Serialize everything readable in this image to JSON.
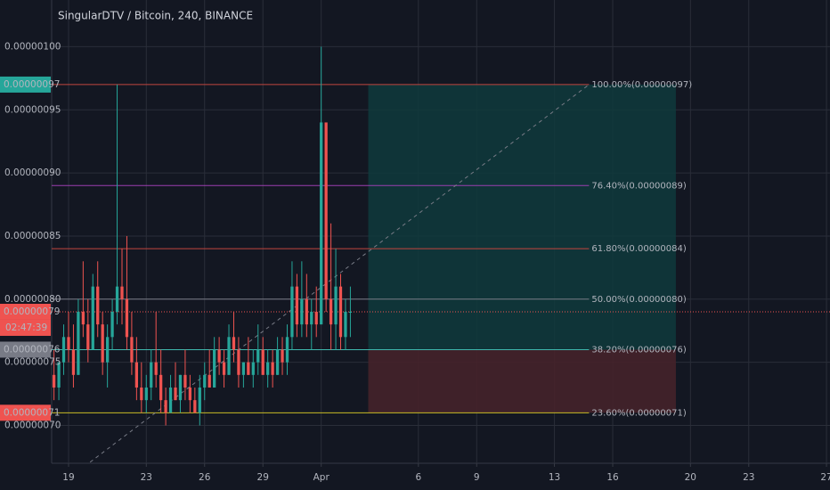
{
  "chart_data": {
    "type": "candlestick",
    "title": "SingularDTV / Bitcoin, 240, BINANCE",
    "up_color": "#26a69a",
    "down_color": "#ef5350",
    "grid": true,
    "ylim": [
      6.7e-07,
      1.037e-06
    ],
    "yticks": [
      {
        "value": 7e-07,
        "label": "0.00000070"
      },
      {
        "value": 7.5e-07,
        "label": "0.00000075"
      },
      {
        "value": 8e-07,
        "label": "0.00000080"
      },
      {
        "value": 8.5e-07,
        "label": "0.00000085"
      },
      {
        "value": 9e-07,
        "label": "0.00000090"
      },
      {
        "value": 9.5e-07,
        "label": "0.00000095"
      },
      {
        "value": 1e-06,
        "label": "0.00000100"
      }
    ],
    "xlim": [
      18.13,
      58.18
    ],
    "xticks": [
      19,
      23,
      26,
      29,
      {
        "value": 32,
        "label": "Apr"
      },
      {
        "value": 37,
        "label": "6"
      },
      {
        "value": 40,
        "label": "9"
      },
      {
        "value": 44,
        "label": "13"
      },
      {
        "value": 47,
        "label": "16"
      },
      {
        "value": 51,
        "label": "20"
      },
      {
        "value": 54,
        "label": "23"
      },
      {
        "value": 58,
        "label": "27"
      }
    ],
    "x": [
      18.25,
      18.5,
      18.75,
      19,
      19.25,
      19.5,
      19.75,
      20,
      20.25,
      20.5,
      20.75,
      21,
      21.25,
      21.5,
      21.75,
      22,
      22.25,
      22.5,
      22.75,
      23,
      23.25,
      23.5,
      23.75,
      24,
      24.25,
      24.5,
      24.75,
      25,
      25.25,
      25.5,
      25.75,
      26,
      26.25,
      26.5,
      26.75,
      27,
      27.25,
      27.5,
      27.75,
      28,
      28.25,
      28.5,
      28.75,
      29,
      29.25,
      29.5,
      29.75,
      30,
      30.25,
      30.5,
      30.75,
      31,
      31.25,
      31.5,
      31.75,
      32,
      32.25,
      32.5,
      32.75,
      33,
      33.25,
      33.5
    ],
    "open": [
      7.4e-07,
      7.3e-07,
      7.5e-07,
      7.7e-07,
      7.6e-07,
      7.4e-07,
      7.9e-07,
      7.8e-07,
      7.6e-07,
      8.1e-07,
      7.8e-07,
      7.5e-07,
      7.7e-07,
      7.9e-07,
      8.1e-07,
      8e-07,
      7.7e-07,
      7.5e-07,
      7.3e-07,
      7.2e-07,
      7.3e-07,
      7.5e-07,
      7.4e-07,
      7.2e-07,
      7.1e-07,
      7.3e-07,
      7.2e-07,
      7.4e-07,
      7.3e-07,
      7.2e-07,
      7.1e-07,
      7.3e-07,
      7.4e-07,
      7.3e-07,
      7.6e-07,
      7.5e-07,
      7.4e-07,
      7.7e-07,
      7.6e-07,
      7.4e-07,
      7.5e-07,
      7.4e-07,
      7.5e-07,
      7.6e-07,
      7.4e-07,
      7.5e-07,
      7.4e-07,
      7.6e-07,
      7.5e-07,
      7.7e-07,
      8.1e-07,
      7.8e-07,
      8e-07,
      7.8e-07,
      7.9e-07,
      7.8e-07,
      9.4e-07,
      8e-07,
      7.8e-07,
      8.1e-07,
      7.7e-07,
      7.9e-07
    ],
    "high": [
      7.6e-07,
      7.5e-07,
      7.8e-07,
      7.9e-07,
      7.8e-07,
      8e-07,
      8.3e-07,
      8e-07,
      8.2e-07,
      8.3e-07,
      7.9e-07,
      7.8e-07,
      8e-07,
      9.7e-07,
      8.4e-07,
      8.5e-07,
      7.9e-07,
      7.7e-07,
      7.5e-07,
      7.4e-07,
      7.6e-07,
      7.9e-07,
      7.6e-07,
      7.3e-07,
      7.4e-07,
      7.5e-07,
      7.4e-07,
      7.6e-07,
      7.4e-07,
      7.3e-07,
      7.4e-07,
      7.5e-07,
      7.6e-07,
      7.7e-07,
      7.7e-07,
      7.6e-07,
      7.8e-07,
      7.9e-07,
      7.7e-07,
      7.5e-07,
      7.7e-07,
      7.6e-07,
      7.8e-07,
      7.7e-07,
      7.6e-07,
      7.6e-07,
      7.7e-07,
      7.7e-07,
      7.8e-07,
      8.3e-07,
      8.2e-07,
      8.3e-07,
      8.2e-07,
      8e-07,
      8.1e-07,
      1e-06,
      9.4e-07,
      8.6e-07,
      8.4e-07,
      8.2e-07,
      8e-07,
      8.1e-07
    ],
    "low": [
      7.2e-07,
      7.2e-07,
      7.4e-07,
      7.5e-07,
      7.3e-07,
      7.4e-07,
      7.7e-07,
      7.5e-07,
      7.6e-07,
      7.7e-07,
      7.4e-07,
      7.3e-07,
      7.6e-07,
      7.8e-07,
      7.8e-07,
      7.6e-07,
      7.4e-07,
      7.2e-07,
      7.1e-07,
      7.1e-07,
      7.2e-07,
      7.3e-07,
      7.1e-07,
      7e-07,
      7.1e-07,
      7.2e-07,
      7.1e-07,
      7.2e-07,
      7.1e-07,
      7.1e-07,
      7e-07,
      7.2e-07,
      7.3e-07,
      7.3e-07,
      7.4e-07,
      7.3e-07,
      7.4e-07,
      7.5e-07,
      7.3e-07,
      7.3e-07,
      7.4e-07,
      7.3e-07,
      7.4e-07,
      7.4e-07,
      7.3e-07,
      7.3e-07,
      7.4e-07,
      7.4e-07,
      7.4e-07,
      7.6e-07,
      7.7e-07,
      7.7e-07,
      7.7e-07,
      7.6e-07,
      7.7e-07,
      7.8e-07,
      7.9e-07,
      7.6e-07,
      7.6e-07,
      7.6e-07,
      7.6e-07,
      7.7e-07
    ],
    "close": [
      7.3e-07,
      7.5e-07,
      7.7e-07,
      7.6e-07,
      7.4e-07,
      7.9e-07,
      7.8e-07,
      7.6e-07,
      8.1e-07,
      7.8e-07,
      7.5e-07,
      7.7e-07,
      7.9e-07,
      8.1e-07,
      8e-07,
      7.7e-07,
      7.5e-07,
      7.3e-07,
      7.2e-07,
      7.3e-07,
      7.5e-07,
      7.4e-07,
      7.2e-07,
      7.1e-07,
      7.3e-07,
      7.2e-07,
      7.4e-07,
      7.3e-07,
      7.2e-07,
      7.1e-07,
      7.3e-07,
      7.4e-07,
      7.3e-07,
      7.6e-07,
      7.5e-07,
      7.4e-07,
      7.7e-07,
      7.6e-07,
      7.4e-07,
      7.5e-07,
      7.4e-07,
      7.5e-07,
      7.6e-07,
      7.4e-07,
      7.5e-07,
      7.4e-07,
      7.6e-07,
      7.5e-07,
      7.7e-07,
      8.1e-07,
      7.8e-07,
      8e-07,
      7.8e-07,
      7.9e-07,
      7.8e-07,
      9.4e-07,
      8e-07,
      7.8e-07,
      8.1e-07,
      7.7e-07,
      7.9e-07,
      7.9e-07
    ],
    "fib": {
      "x0": 16.6,
      "x1": 45.78,
      "zero": 6.3e-07,
      "line_color": "#787b86",
      "levels": [
        {
          "value": 9.7e-07,
          "label": "100.00%(0.00000097)",
          "color": "#c2453f"
        },
        {
          "value": 8.9e-07,
          "label": "76.40%(0.00000089)",
          "color": "#9c3fb0"
        },
        {
          "value": 8.4e-07,
          "label": "61.80%(0.00000084)",
          "color": "#c2453f"
        },
        {
          "value": 8e-07,
          "label": "50.00%(0.00000080)",
          "color": "#787b86"
        },
        {
          "value": 7.6e-07,
          "label": "38.20%(0.00000076)",
          "color": "#3fb8ad"
        },
        {
          "value": 7.1e-07,
          "label": "23.60%(0.00000071)",
          "color": "#c8bb26"
        }
      ]
    },
    "position": {
      "x_start": 34.42,
      "x_end": 50.25,
      "entry": 7.6e-07,
      "target": 9.7e-07,
      "stop": 7.1e-07,
      "profit_color": "#0f3a3c",
      "loss_color": "#45222a"
    },
    "last_price": {
      "value": 7.9e-07,
      "color": "#ef5350"
    },
    "price_tags": [
      {
        "value": 9.7e-07,
        "label": "0.00000097",
        "color": "#26a69a"
      },
      {
        "value": 7.9e-07,
        "label": "0.00000079",
        "color": "#ef5350"
      },
      {
        "value": 7.6e-07,
        "label": "0.00000076",
        "color": "#787b86"
      },
      {
        "value": 7.1e-07,
        "label": "0.00000071",
        "color": "#ef5350"
      }
    ],
    "countdown": "02:47:39"
  }
}
